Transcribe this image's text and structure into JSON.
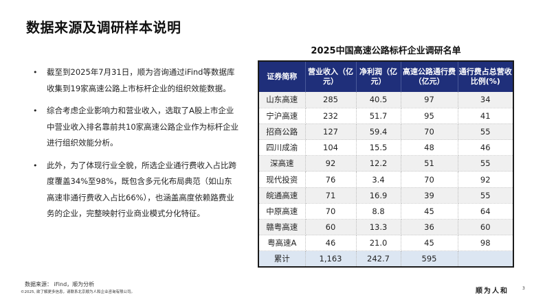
{
  "title": "数据来源及调研样本说明",
  "bullets": [
    "截至到2025年7月31日，顺为咨询通过iFind等数据库收集到19家高速公路上市标杆企业的组织效能数据。",
    "综合考虑企业影响力和营业收入，选取了A股上市企业中营业收入排名靠前共10家高速公路企业作为标杆企业进行组织效能分析。",
    "此外，为了体现行业全貌，所选企业通行费收入占比跨度覆盖34%至98%，既包含多元化布局典范（如山东高速非通行费收入占比66%），也涵盖高度依赖路费业务的企业，完整映射行业商业模式分化特征。"
  ],
  "table": {
    "title": "2025中国高速公路标杆企业调研名单",
    "headers": [
      "证券简称",
      "营业收入（亿元）",
      "净利润（亿元）",
      "高速公路通行费（亿元）",
      "通行费占总营收比例(%)"
    ],
    "rows": [
      [
        "山东高速",
        "285",
        "40.5",
        "97",
        "34"
      ],
      [
        "宁沪高速",
        "232",
        "51.7",
        "95",
        "41"
      ],
      [
        "招商公路",
        "127",
        "59.4",
        "70",
        "55"
      ],
      [
        "四川成渝",
        "104",
        "15.5",
        "48",
        "46"
      ],
      [
        "深高速",
        "92",
        "12.2",
        "51",
        "55"
      ],
      [
        "现代投资",
        "76",
        "3.4",
        "70",
        "92"
      ],
      [
        "皖通高速",
        "71",
        "16.9",
        "39",
        "55"
      ],
      [
        "中原高速",
        "70",
        "8.8",
        "45",
        "64"
      ],
      [
        "赣粤高速",
        "60",
        "13.3",
        "36",
        "60"
      ],
      [
        "粤高速A",
        "46",
        "21.0",
        "45",
        "98"
      ]
    ],
    "total": [
      "累计",
      "1,163",
      "242.7",
      "595",
      ""
    ]
  },
  "footer": {
    "source": "数据来源： iFind，顺为分析",
    "copyright": "©2025, 欲了解更多信息，请联系北京顺为人和企业咨询有限公司。",
    "logo": "顺为人和",
    "page": "3"
  }
}
